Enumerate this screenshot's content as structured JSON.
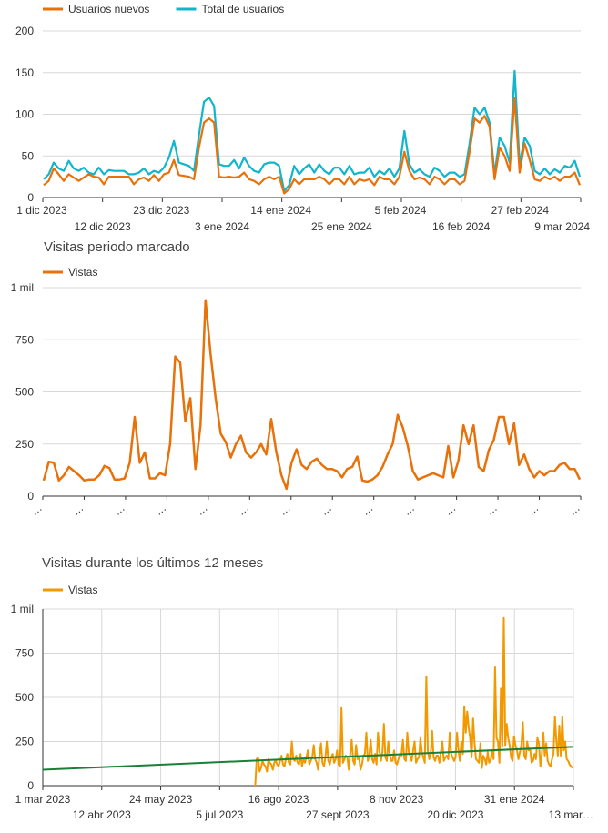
{
  "chart_data": [
    {
      "type": "line",
      "title": "",
      "legend": [
        "Usuarios nuevos",
        "Total de usuarios"
      ],
      "legend_position": "top-left",
      "grid": "horizontal",
      "ylim": [
        0,
        200
      ],
      "y_ticks": [
        "0",
        "50",
        "100",
        "150",
        "200"
      ],
      "x_ticks_top": [
        "1 dic 2023",
        "23 dic 2023",
        "14 ene 2024",
        "5 feb 2024",
        "27 feb 2024"
      ],
      "x_ticks_bottom": [
        "12 dic 2023",
        "3 ene 2024",
        "25 ene 2024",
        "16 feb 2024",
        "9 mar 2024"
      ],
      "x_range": [
        "2023-12-01",
        "2024-03-12"
      ],
      "colors": {
        "Usuarios nuevos": "#e8710a",
        "Total de usuarios": "#12b5cb"
      },
      "series": [
        {
          "name": "Usuarios nuevos",
          "values": [
            15,
            20,
            35,
            28,
            20,
            28,
            24,
            20,
            24,
            28,
            25,
            24,
            16,
            25,
            25,
            25,
            25,
            25,
            16,
            22,
            24,
            20,
            27,
            20,
            28,
            30,
            45,
            27,
            26,
            25,
            22,
            60,
            90,
            95,
            90,
            25,
            24,
            25,
            24,
            25,
            30,
            22,
            20,
            16,
            22,
            25,
            22,
            25,
            5,
            10,
            22,
            16,
            22,
            22,
            22,
            25,
            22,
            16,
            22,
            22,
            16,
            25,
            16,
            22,
            20,
            22,
            15,
            25,
            22,
            22,
            16,
            25,
            55,
            32,
            22,
            24,
            22,
            16,
            25,
            22,
            16,
            22,
            22,
            16,
            20,
            55,
            95,
            90,
            98,
            85,
            22,
            60,
            50,
            32,
            120,
            30,
            65,
            45,
            22,
            20,
            25,
            22,
            25,
            20,
            25,
            25,
            30,
            15
          ]
        },
        {
          "name": "Total de usuarios",
          "values": [
            22,
            28,
            42,
            35,
            32,
            44,
            35,
            32,
            36,
            30,
            28,
            36,
            28,
            33,
            32,
            32,
            32,
            28,
            28,
            30,
            35,
            28,
            32,
            30,
            36,
            48,
            68,
            42,
            40,
            38,
            32,
            75,
            115,
            120,
            110,
            40,
            38,
            38,
            45,
            35,
            48,
            38,
            32,
            30,
            40,
            42,
            42,
            38,
            8,
            15,
            38,
            28,
            35,
            40,
            30,
            40,
            32,
            28,
            36,
            36,
            28,
            38,
            28,
            30,
            30,
            36,
            25,
            32,
            28,
            35,
            25,
            35,
            80,
            40,
            30,
            34,
            28,
            25,
            36,
            32,
            25,
            30,
            30,
            25,
            28,
            65,
            108,
            100,
            108,
            90,
            28,
            72,
            62,
            42,
            152,
            40,
            72,
            62,
            32,
            28,
            35,
            28,
            34,
            30,
            38,
            36,
            44,
            25
          ]
        }
      ]
    },
    {
      "type": "line",
      "title": "Visitas periodo marcado",
      "legend": [
        "Vistas"
      ],
      "legend_position": "top-left",
      "grid": "horizontal",
      "ylim": [
        0,
        1000
      ],
      "y_ticks": [
        "0",
        "250",
        "500",
        "750",
        "1 mil"
      ],
      "x_ticks": [
        "…",
        "…",
        "…",
        "…",
        "…",
        "…",
        "…",
        "…",
        "…",
        "…",
        "…",
        "…",
        "…",
        "…"
      ],
      "colors": {
        "Vistas": "#e8710a"
      },
      "series": [
        {
          "name": "Vistas",
          "values": [
            75,
            165,
            160,
            75,
            100,
            140,
            120,
            100,
            75,
            80,
            80,
            100,
            145,
            135,
            80,
            80,
            85,
            160,
            380,
            160,
            210,
            85,
            85,
            110,
            100,
            250,
            670,
            640,
            360,
            470,
            130,
            340,
            940,
            680,
            470,
            300,
            260,
            185,
            250,
            290,
            210,
            185,
            210,
            250,
            200,
            370,
            210,
            100,
            35,
            160,
            225,
            150,
            130,
            165,
            180,
            150,
            130,
            130,
            120,
            90,
            130,
            140,
            190,
            75,
            70,
            80,
            100,
            140,
            200,
            250,
            390,
            330,
            240,
            120,
            80,
            90,
            100,
            110,
            100,
            90,
            240,
            90,
            170,
            340,
            250,
            340,
            140,
            120,
            220,
            270,
            380,
            380,
            250,
            350,
            150,
            200,
            130,
            90,
            120,
            100,
            120,
            120,
            150,
            160,
            130,
            130,
            80
          ]
        }
      ]
    },
    {
      "type": "line",
      "title": "Visitas durante los últimos 12 meses",
      "legend": [
        "Vistas"
      ],
      "legend_position": "top-left",
      "grid": "both",
      "ylim": [
        0,
        1000
      ],
      "y_ticks": [
        "0",
        "250",
        "500",
        "750",
        "1 mil"
      ],
      "x_ticks_top": [
        "1 mar 2023",
        "24 may 2023",
        "16 ago 2023",
        "8 nov 2023",
        "31 ene 2024"
      ],
      "x_ticks_bottom": [
        "12 abr 2023",
        "5 jul 2023",
        "27 sept 2023",
        "20 dic 2023",
        "13 mar…"
      ],
      "x_range": [
        "2023-03-01",
        "2024-03-14"
      ],
      "trendline": {
        "color": "#188038",
        "from": 90,
        "to": 220
      },
      "colors": {
        "Vistas": "#f29900"
      },
      "series_start_fraction": 0.4,
      "series": [
        {
          "name": "Vistas",
          "values": [
            0,
            150,
            160,
            80,
            100,
            140,
            120,
            110,
            80,
            150,
            130,
            120,
            90,
            130,
            145,
            120,
            110,
            140,
            170,
            120,
            110,
            150,
            180,
            130,
            120,
            250,
            150,
            140,
            170,
            130,
            120,
            180,
            110,
            150,
            130,
            160,
            200,
            120,
            140,
            160,
            230,
            150,
            130,
            90,
            170,
            240,
            130,
            110,
            160,
            250,
            140,
            120,
            160,
            180,
            130,
            150,
            200,
            120,
            110,
            440,
            130,
            150,
            170,
            160,
            90,
            180,
            260,
            140,
            120,
            230,
            150,
            160,
            90,
            120,
            170,
            180,
            300,
            140,
            170,
            260,
            150,
            130,
            180,
            120,
            300,
            200,
            140,
            190,
            350,
            160,
            140,
            250,
            180,
            140,
            140,
            200,
            130,
            120,
            150,
            180,
            170,
            260,
            150,
            140,
            300,
            190,
            170,
            140,
            200,
            250,
            130,
            150,
            160,
            270,
            190,
            160,
            130,
            620,
            200,
            150,
            180,
            310,
            160,
            140,
            170,
            170,
            130,
            190,
            250,
            140,
            160,
            170,
            150,
            300,
            180,
            160,
            140,
            160,
            300,
            200,
            140,
            250,
            180,
            450,
            300,
            420,
            330,
            270,
            160,
            380,
            240,
            150,
            140,
            130,
            240,
            100,
            170,
            150,
            120,
            190,
            130,
            140,
            200,
            150,
            670,
            270,
            250,
            130,
            550,
            220,
            950,
            230,
            350,
            270,
            230,
            160,
            140,
            280,
            230,
            200,
            150,
            190,
            230,
            360,
            170,
            150,
            250,
            200,
            210,
            130,
            140,
            180,
            150,
            270,
            240,
            110,
            180,
            300,
            170,
            240,
            140,
            120,
            110,
            150,
            180,
            390,
            250,
            170,
            340,
            170,
            390,
            200,
            250,
            150,
            140,
            120,
            110,
            100
          ]
        }
      ]
    }
  ]
}
